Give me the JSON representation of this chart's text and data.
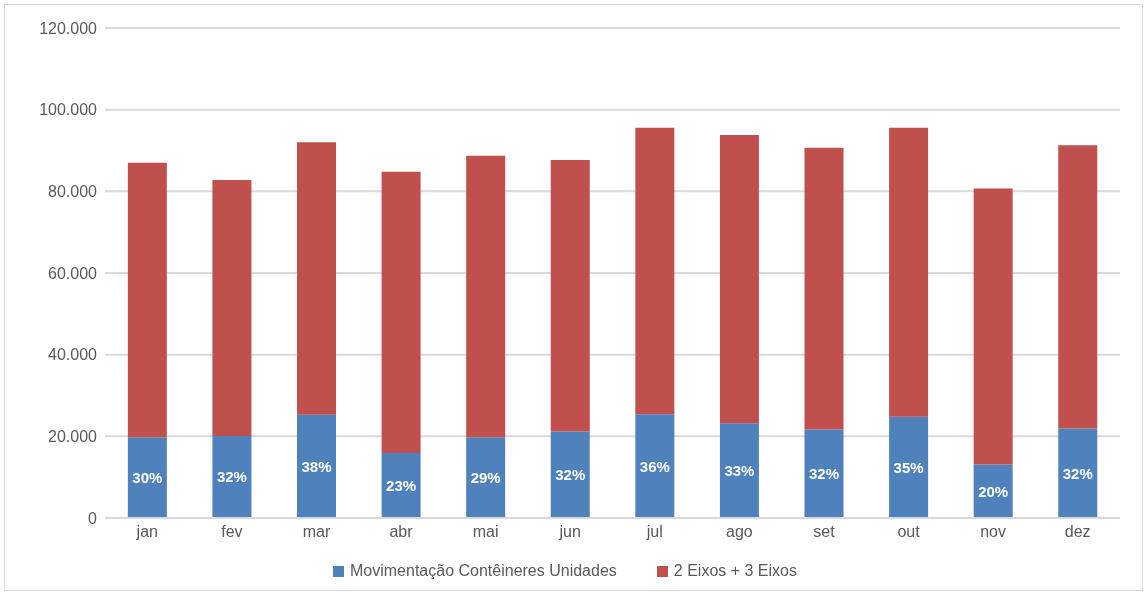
{
  "chart_data": {
    "type": "bar",
    "stacked": true,
    "categories": [
      "jan",
      "fev",
      "mar",
      "abr",
      "mai",
      "jun",
      "jul",
      "ago",
      "set",
      "out",
      "nov",
      "dez"
    ],
    "series": [
      {
        "name": "Movimentação Contêineres Unidades",
        "color": "#4f81bd",
        "values": [
          19800,
          20100,
          25300,
          15900,
          19800,
          21200,
          25400,
          23200,
          21700,
          24800,
          13100,
          21900
        ]
      },
      {
        "name": "2 Eixos + 3 Eixos",
        "color": "#c0504d",
        "values": [
          67200,
          62700,
          66700,
          68900,
          68900,
          66500,
          70200,
          70600,
          69000,
          70800,
          67600,
          69400
        ]
      }
    ],
    "annotations": [
      {
        "text": "30%",
        "x": "jan",
        "y": 19800
      },
      {
        "text": "32%",
        "x": "fev",
        "y": 20100
      },
      {
        "text": "38%",
        "x": "mar",
        "y": 25300
      },
      {
        "text": "23%",
        "x": "abr",
        "y": 15900
      },
      {
        "text": "29%",
        "x": "mai",
        "y": 19800
      },
      {
        "text": "32%",
        "x": "jun",
        "y": 21200
      },
      {
        "text": "36%",
        "x": "jul",
        "y": 25400
      },
      {
        "text": "33%",
        "x": "ago",
        "y": 23200
      },
      {
        "text": "32%",
        "x": "set",
        "y": 21700
      },
      {
        "text": "35%",
        "x": "out",
        "y": 24800
      },
      {
        "text": "20%",
        "x": "nov",
        "y": 13100
      },
      {
        "text": "32%",
        "x": "dez",
        "y": 21900
      }
    ],
    "ylim": [
      0,
      120000
    ],
    "yticks": [
      {
        "value": 0,
        "label": "0"
      },
      {
        "value": 20000,
        "label": "20.000"
      },
      {
        "value": 40000,
        "label": "40.000"
      },
      {
        "value": 60000,
        "label": "60.000"
      },
      {
        "value": 80000,
        "label": "80.000"
      },
      {
        "value": 100000,
        "label": "100.000"
      },
      {
        "value": 120000,
        "label": "120.000"
      }
    ],
    "grid": "y",
    "legend": "bottom"
  }
}
